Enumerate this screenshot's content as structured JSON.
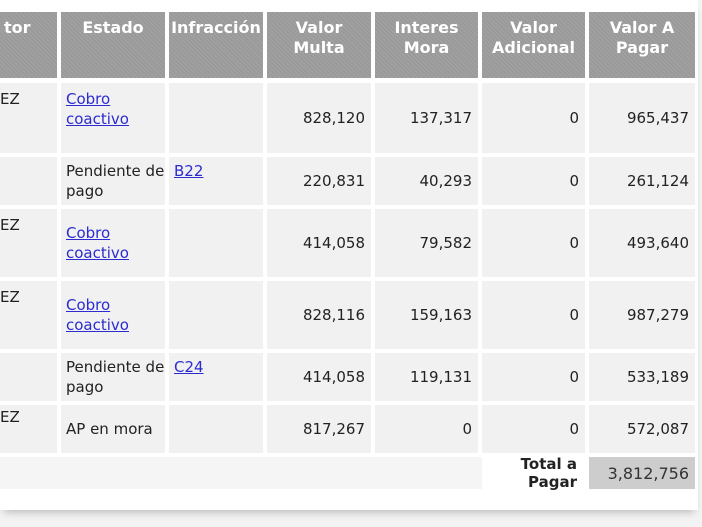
{
  "headers": {
    "c0": "tor",
    "estado": "Estado",
    "infraccion": "Infracción",
    "valor_multa": [
      "Valor",
      "Multa"
    ],
    "interes_mora": [
      "Interes",
      "Mora"
    ],
    "valor_adicional": [
      "Valor",
      "Adicional"
    ],
    "valor_pagar": [
      "Valor A",
      "Pagar"
    ]
  },
  "rows": [
    {
      "c0": "EZ",
      "estado": [
        "Cobro",
        "coactivo"
      ],
      "estado_link": true,
      "infraccion": "",
      "valor_multa": "828,120",
      "interes_mora": "137,317",
      "valor_adicional": "0",
      "valor_pagar": "965,437"
    },
    {
      "c0": "",
      "estado": [
        "Pendiente de",
        "pago"
      ],
      "estado_link": false,
      "infraccion": "B22",
      "valor_multa": "220,831",
      "interes_mora": "40,293",
      "valor_adicional": "0",
      "valor_pagar": "261,124"
    },
    {
      "c0": "EZ",
      "estado": [
        "Cobro",
        "coactivo"
      ],
      "estado_link": true,
      "infraccion": "",
      "valor_multa": "414,058",
      "interes_mora": "79,582",
      "valor_adicional": "0",
      "valor_pagar": "493,640"
    },
    {
      "c0": "EZ",
      "estado": [
        "Cobro",
        "coactivo"
      ],
      "estado_link": true,
      "infraccion": "",
      "valor_multa": "828,116",
      "interes_mora": "159,163",
      "valor_adicional": "0",
      "valor_pagar": "987,279"
    },
    {
      "c0": "",
      "estado": [
        "Pendiente de",
        "pago"
      ],
      "estado_link": false,
      "infraccion": "C24",
      "valor_multa": "414,058",
      "interes_mora": "119,131",
      "valor_adicional": "0",
      "valor_pagar": "533,189"
    },
    {
      "c0": "EZ",
      "estado": [
        "AP en mora"
      ],
      "estado_link": false,
      "infraccion": "",
      "valor_multa": "817,267",
      "interes_mora": "0",
      "valor_adicional": "0",
      "valor_pagar": "572,087"
    }
  ],
  "total": {
    "label": "Total a Pagar",
    "value": "3,812,756"
  }
}
